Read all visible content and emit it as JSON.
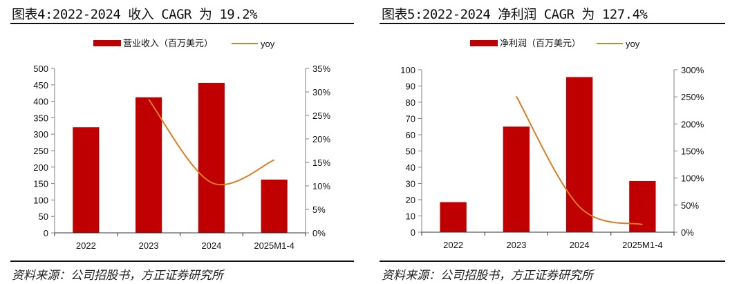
{
  "colors": {
    "bar": "#C00000",
    "line": "#E07B1F",
    "axis": "#808080"
  },
  "chart_data": [
    {
      "type": "bar+line",
      "title": "图表4:2022-2024 收入 CAGR 为 19.2%",
      "categories": [
        "2022",
        "2023",
        "2024",
        "2025M1-4"
      ],
      "series": [
        {
          "name": "营业收入（百万美元）",
          "type": "bar",
          "axis": "left",
          "values": [
            321,
            412,
            456,
            162
          ]
        },
        {
          "name": "yoy",
          "type": "line",
          "axis": "right",
          "values": [
            null,
            28.4,
            10.7,
            15.5
          ]
        }
      ],
      "ylim_left": [
        0,
        500
      ],
      "yticks_left": [
        "0",
        "50",
        "100",
        "150",
        "200",
        "250",
        "300",
        "350",
        "400",
        "450",
        "500"
      ],
      "ylim_right": [
        0,
        35
      ],
      "yticks_right": [
        "0%",
        "5%",
        "10%",
        "15%",
        "20%",
        "25%",
        "30%",
        "35%"
      ],
      "legend": "top",
      "grid": false,
      "source": "资料来源：公司招股书，方正证券研究所"
    },
    {
      "type": "bar+line",
      "title": "图表5:2022-2024 净利润 CAGR 为 127.4%",
      "categories": [
        "2022",
        "2023",
        "2024",
        "2025M1-4"
      ],
      "series": [
        {
          "name": "净利润（百万美元）",
          "type": "bar",
          "axis": "left",
          "values": [
            18.5,
            65,
            95.5,
            31.5
          ]
        },
        {
          "name": "yoy",
          "type": "line",
          "axis": "right",
          "values": [
            null,
            251,
            47,
            14
          ]
        }
      ],
      "ylim_left": [
        0,
        100
      ],
      "yticks_left": [
        "0",
        "10",
        "20",
        "30",
        "40",
        "50",
        "60",
        "70",
        "80",
        "90",
        "100"
      ],
      "ylim_right": [
        0,
        300
      ],
      "yticks_right": [
        "0%",
        "50%",
        "100%",
        "150%",
        "200%",
        "250%",
        "300%"
      ],
      "legend": "top",
      "grid": false,
      "source": "资料来源：公司招股书，方正证券研究所"
    }
  ]
}
